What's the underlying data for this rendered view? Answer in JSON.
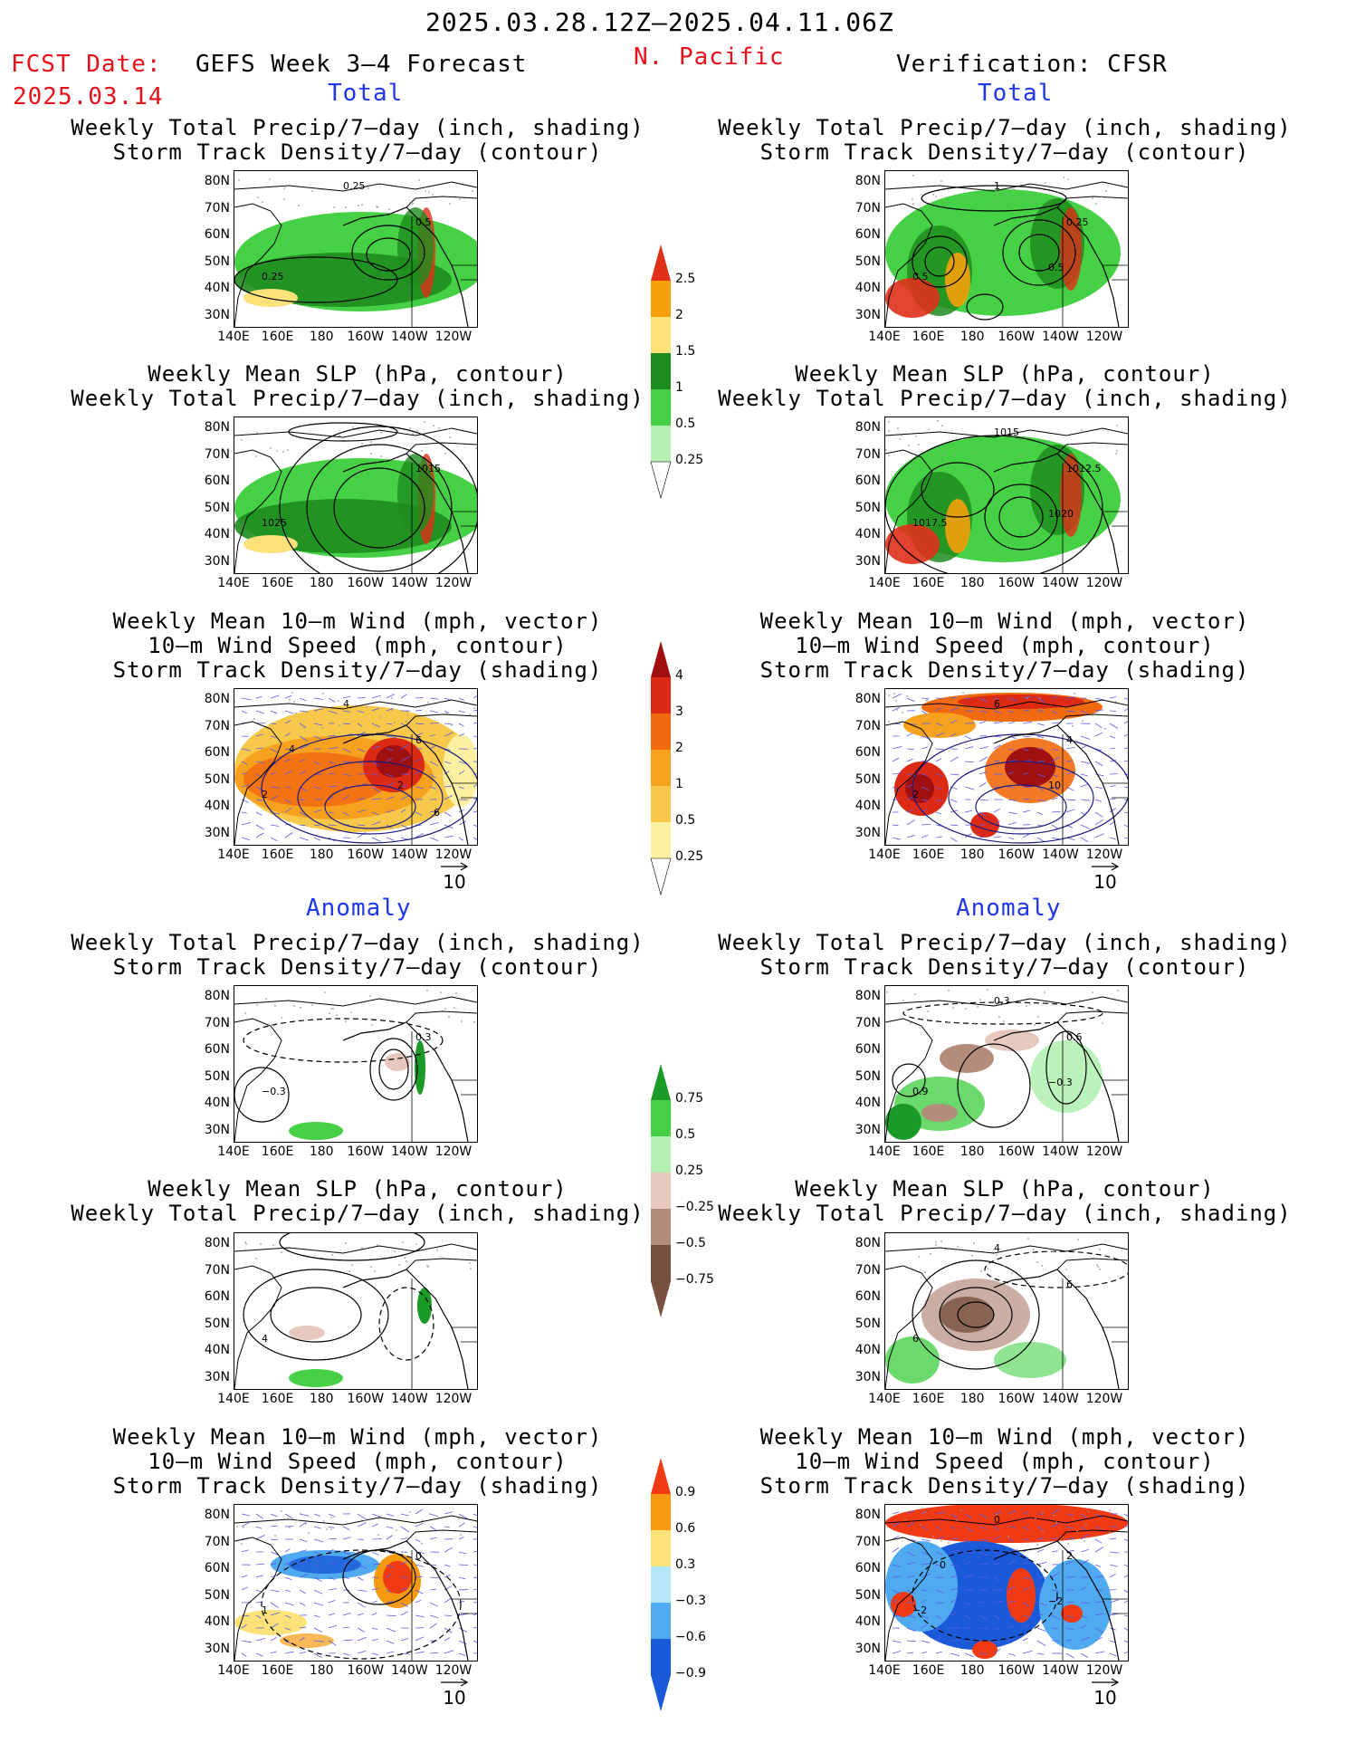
{
  "header": {
    "date_range": "2025.03.28.12Z–2025.04.11.06Z",
    "fcst_label": "FCST Date:",
    "fcst_date": "2025.03.14",
    "forecast_title": "GEFS Week 3–4 Forecast",
    "region": "N. Pacific",
    "verification": "Verification: CFSR"
  },
  "sections": {
    "total_left": "Total",
    "total_right": "Total",
    "anomaly_left": "Anomaly",
    "anomaly_right": "Anomaly"
  },
  "panel_titles": {
    "p1": [
      "Weekly Total Precip/7–day (inch, shading)",
      "Storm Track Density/7–day (contour)"
    ],
    "p2": [
      "Weekly Mean SLP (hPa, contour)",
      "Weekly Total Precip/7–day (inch, shading)"
    ],
    "p3": [
      "Weekly Mean 10–m Wind (mph, vector)",
      "10–m Wind Speed (mph, contour)",
      "Storm Track Density/7–day (shading)"
    ]
  },
  "axes": {
    "lat_ticks": [
      "80N",
      "70N",
      "60N",
      "50N",
      "40N",
      "30N"
    ],
    "lon_ticks": [
      "140E",
      "160E",
      "180",
      "160W",
      "140W",
      "120W"
    ]
  },
  "vector_reference": "10",
  "colorbars": {
    "precip_total": {
      "labels": [
        "2.5",
        "2",
        "1.5",
        "1",
        "0.5",
        "0.25"
      ],
      "colors": [
        "#e03018",
        "#f5a00a",
        "#fde27a",
        "#1e8c1e",
        "#46d046",
        "#b4f0b4"
      ]
    },
    "storm_total": {
      "labels": [
        "4",
        "3",
        "2",
        "1",
        "0.5",
        "0.25"
      ],
      "colors": [
        "#a01010",
        "#dc2a14",
        "#f26a10",
        "#f6a21e",
        "#f8c84a",
        "#fdf0a0"
      ]
    },
    "precip_anom": {
      "labels": [
        "0.75",
        "0.5",
        "0.25",
        "−0.25",
        "−0.5",
        "−0.75"
      ],
      "colors": [
        "#1c9a28",
        "#46d046",
        "#b4f0b4",
        "#e6c8be",
        "#b48c7c",
        "#785040"
      ]
    },
    "storm_anom": {
      "labels": [
        "0.9",
        "0.6",
        "0.3",
        "−0.3",
        "−0.6",
        "−0.9"
      ],
      "colors": [
        "#f03a14",
        "#f59a10",
        "#fde27a",
        "#b4e6f8",
        "#50aaf0",
        "#1a5ad8"
      ]
    }
  },
  "contour_labels": {
    "l1": [
      "0.25",
      "0.5",
      "0.25"
    ],
    "r1": [
      "0.5",
      "0.25",
      "1",
      "0.5"
    ],
    "l2": [
      "1025",
      "1015"
    ],
    "r2": [
      "1017.5",
      "1012.5",
      "1015",
      "1020"
    ],
    "l3": [
      "2",
      "6",
      "4",
      "2",
      "4",
      "6"
    ],
    "r3": [
      "2",
      "4",
      "6",
      "10"
    ],
    "l4": [
      "−0.3",
      "0.3"
    ],
    "r4": [
      "0.9",
      "0.6",
      "0.3",
      "−0.3"
    ],
    "l5": [
      "4"
    ],
    "r5": [
      "6",
      "6",
      "4"
    ],
    "l6": [
      "1",
      "0"
    ],
    "r6": [
      "−2",
      "2",
      "0",
      "−2",
      "0"
    ]
  }
}
